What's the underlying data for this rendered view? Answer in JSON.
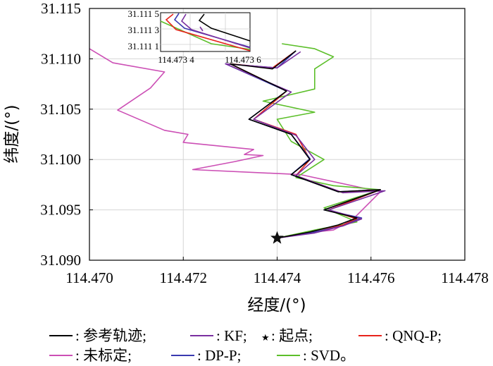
{
  "chart_data": {
    "type": "line",
    "title": "",
    "xlabel": "经度/(°)",
    "ylabel": "纬度/(°)",
    "xlim": [
      114.47,
      114.478
    ],
    "ylim": [
      31.09,
      31.115
    ],
    "xticks": [
      "114.470",
      "114.472",
      "114.474",
      "114.476",
      "114.478"
    ],
    "yticks": [
      "31.090",
      "31.095",
      "31.100",
      "31.105",
      "31.110",
      "31.115"
    ],
    "grid": true,
    "start_point": {
      "label": "起点",
      "x": 114.474,
      "y": 31.0922
    },
    "series": [
      {
        "name": "参考轨迹",
        "color": "#000000",
        "x": [
          114.474,
          114.4747,
          114.4753,
          114.4757,
          114.475,
          114.4762,
          114.4753,
          114.4743,
          114.4747,
          114.4743,
          114.4734,
          114.4742,
          114.473,
          114.4739,
          114.4744
        ],
        "y": [
          31.0922,
          31.0928,
          31.0935,
          31.0942,
          31.095,
          31.097,
          31.0968,
          31.0985,
          31.1,
          31.1025,
          31.104,
          31.1068,
          31.1095,
          31.109,
          31.1108
        ]
      },
      {
        "name": "KF",
        "color": "#7a2fa0",
        "x": [
          114.474,
          114.4748,
          114.4754,
          114.4758,
          114.4751,
          114.4763,
          114.4754,
          114.4744,
          114.4748,
          114.4744,
          114.4735,
          114.4743,
          114.4729,
          114.474,
          114.4745
        ],
        "y": [
          31.0922,
          31.0927,
          31.0934,
          31.0941,
          31.095,
          31.0969,
          31.0967,
          31.0984,
          31.1,
          31.1024,
          31.104,
          31.1067,
          31.1095,
          31.1091,
          31.1107
        ]
      },
      {
        "name": "QNQ-P",
        "color": "#e8241c",
        "x": [
          114.474,
          114.4748,
          114.4754,
          114.4757,
          114.4751,
          114.4762,
          114.4754,
          114.4744,
          114.4747,
          114.4744,
          114.4735,
          114.4742,
          114.473,
          114.4739,
          114.4744
        ],
        "y": [
          31.0922,
          31.0928,
          31.0935,
          31.0941,
          31.095,
          31.097,
          31.0967,
          31.0984,
          31.1,
          31.1025,
          31.104,
          31.1068,
          31.1095,
          31.1091,
          31.1108
        ]
      },
      {
        "name": "未标定",
        "color": "#cc4fb5",
        "x": [
          114.474,
          114.4748,
          114.4752,
          114.4754,
          114.4756,
          114.4762,
          114.4745,
          114.4722,
          114.4731,
          114.4737,
          114.4733,
          114.4735,
          114.472,
          114.4721,
          114.4716,
          114.4706,
          114.4713,
          114.4716,
          114.4705,
          114.47
        ],
        "y": [
          31.0922,
          31.0928,
          31.093,
          31.0935,
          31.094,
          31.0968,
          31.0985,
          31.099,
          31.0998,
          31.1004,
          31.1005,
          31.101,
          31.1017,
          31.1025,
          31.1029,
          31.1049,
          31.1071,
          31.1087,
          31.1096,
          31.111
        ]
      },
      {
        "name": "DP-P",
        "color": "#3a3ab0",
        "x": [
          114.474,
          114.4747,
          114.4754,
          114.4758,
          114.475,
          114.4762,
          114.4753,
          114.4743,
          114.4747,
          114.4743,
          114.4734,
          114.4742,
          114.4729,
          114.474,
          114.4744
        ],
        "y": [
          31.0922,
          31.0927,
          31.0934,
          31.0942,
          31.095,
          31.097,
          31.0968,
          31.0985,
          31.1001,
          31.1025,
          31.104,
          31.1068,
          31.1095,
          31.1091,
          31.1108
        ]
      },
      {
        "name": "SVD",
        "color": "#5cbf2a",
        "x": [
          114.474,
          114.4748,
          114.4757,
          114.475,
          114.4762,
          114.4752,
          114.4744,
          114.475,
          114.4743,
          114.474,
          114.4748,
          114.4737,
          114.4748,
          114.4748,
          114.4752,
          114.4748,
          114.4741
        ],
        "y": [
          31.0922,
          31.093,
          31.0938,
          31.0952,
          31.097,
          31.0974,
          31.0982,
          31.1,
          31.1018,
          31.104,
          31.1047,
          31.1058,
          31.107,
          31.109,
          31.1102,
          31.111,
          31.1115
        ]
      }
    ],
    "inset": {
      "xticks": [
        "114.473 4",
        "114.473 6"
      ],
      "yticks": [
        "31.111 5",
        "31.111 3",
        "31.111 1"
      ]
    }
  },
  "legend": [
    {
      "key": "参考轨迹",
      "text": ": 参考轨迹;",
      "color": "#000000",
      "marker": "line"
    },
    {
      "key": "KF",
      "text": ": KF;",
      "color": "#7a2fa0",
      "marker": "line"
    },
    {
      "key": "起点",
      "text": ": 起点;",
      "color": "#000000",
      "marker": "star"
    },
    {
      "key": "QNQ-P",
      "text": ": QNQ-P;",
      "color": "#e8241c",
      "marker": "line"
    },
    {
      "key": "未标定",
      "text": ": 未标定;",
      "color": "#cc4fb5",
      "marker": "line"
    },
    {
      "key": "DP-P",
      "text": ": DP-P;",
      "color": "#3a3ab0",
      "marker": "line"
    },
    {
      "key": "SVD",
      "text": ": SVD。",
      "color": "#5cbf2a",
      "marker": "line"
    }
  ]
}
